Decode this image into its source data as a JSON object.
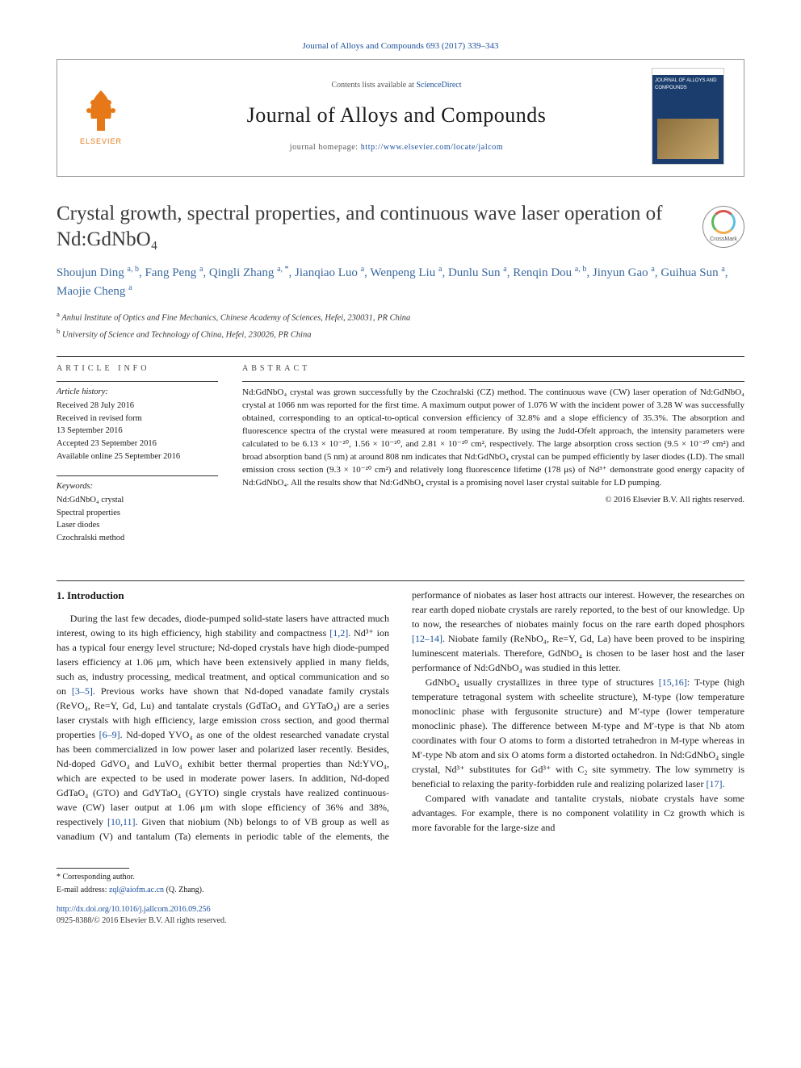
{
  "citation": "Journal of Alloys and Compounds 693 (2017) 339–343",
  "header": {
    "contents_prefix": "Contents lists available at ",
    "contents_link": "ScienceDirect",
    "journal_name": "Journal of Alloys and Compounds",
    "homepage_prefix": "journal homepage: ",
    "homepage_url": "http://www.elsevier.com/locate/jalcom",
    "publisher": "ELSEVIER",
    "cover_title": "JOURNAL OF ALLOYS AND COMPOUNDS"
  },
  "title": "Crystal growth, spectral properties, and continuous wave laser operation of Nd:GdNbO₄",
  "crossmark": "CrossMark",
  "authors_html": "Shoujun Ding <sup>a, b</sup>, Fang Peng <sup>a</sup>, Qingli Zhang <sup>a, *</sup>, Jianqiao Luo <sup>a</sup>, Wenpeng Liu <sup>a</sup>, Dunlu Sun <sup>a</sup>, Renqin Dou <sup>a, b</sup>, Jinyun Gao <sup>a</sup>, Guihua Sun <sup>a</sup>, Maojie Cheng <sup>a</sup>",
  "affiliations": [
    {
      "sup": "a",
      "text": "Anhui Institute of Optics and Fine Mechanics, Chinese Academy of Sciences, Hefei, 230031, PR China"
    },
    {
      "sup": "b",
      "text": "University of Science and Technology of China, Hefei, 230026, PR China"
    }
  ],
  "article_info": {
    "head": "ARTICLE INFO",
    "history_label": "Article history:",
    "history": [
      "Received 28 July 2016",
      "Received in revised form",
      "13 September 2016",
      "Accepted 23 September 2016",
      "Available online 25 September 2016"
    ],
    "keywords_label": "Keywords:",
    "keywords": [
      "Nd:GdNbO₄ crystal",
      "Spectral properties",
      "Laser diodes",
      "Czochralski method"
    ]
  },
  "abstract": {
    "head": "ABSTRACT",
    "text": "Nd:GdNbO₄ crystal was grown successfully by the Czochralski (CZ) method. The continuous wave (CW) laser operation of Nd:GdNbO₄ crystal at 1066 nm was reported for the first time. A maximum output power of 1.076 W with the incident power of 3.28 W was successfully obtained, corresponding to an optical-to-optical conversion efficiency of 32.8% and a slope efficiency of 35.3%. The absorption and fluorescence spectra of the crystal were measured at room temperature. By using the Judd-Ofelt approach, the intensity parameters were calculated to be 6.13 × 10⁻²⁰, 1.56 × 10⁻²⁰, and 2.81 × 10⁻²⁰ cm², respectively. The large absorption cross section (9.5 × 10⁻²⁰ cm²) and broad absorption band (5 nm) at around 808 nm indicates that Nd:GdNbO₄ crystal can be pumped efficiently by laser diodes (LD). The small emission cross section (9.3 × 10⁻²⁰ cm²) and relatively long fluorescence lifetime (178 μs) of Nd³⁺ demonstrate good energy capacity of Nd:GdNbO₄. All the results show that Nd:GdNbO₄ crystal is a promising novel laser crystal suitable for LD pumping.",
    "copyright": "© 2016 Elsevier B.V. All rights reserved."
  },
  "body": {
    "section1_title": "1. Introduction",
    "p1_a": "During the last few decades, diode-pumped solid-state lasers have attracted much interest, owing to its high efficiency, high stability and compactness ",
    "p1_ref1": "[1,2]",
    "p1_b": ". Nd³⁺ ion has a typical four energy level structure; Nd-doped crystals have high diode-pumped lasers efficiency at 1.06 μm, which have been extensively applied in many fields, such as, industry processing, medical treatment, and optical communication and so on ",
    "p1_ref2": "[3–5]",
    "p1_c": ". Previous works have shown that Nd-doped vanadate family crystals (ReVO₄, Re=Y, Gd, Lu) and tantalate crystals (GdTaO₄ and GYTaO₄) are a series laser crystals with high efficiency, large emission cross section, and good thermal properties ",
    "p1_ref3": "[6–9]",
    "p1_d": ". Nd-doped YVO₄ as one of the oldest researched vanadate crystal has been commercialized in low power laser and polarized laser recently. Besides, Nd-doped GdVO₄ and LuVO₄ exhibit better thermal properties than Nd:YVO₄, which are expected to be used in moderate power lasers. In addition, Nd-doped GdTaO₄ (GTO) and GdYTaO₄ (GYTO) single crystals have realized continuous-wave (CW) laser output at 1.06 μm with slope",
    "p2_a": "efficiency of 36% and 38%, respectively ",
    "p2_ref1": "[10,11]",
    "p2_b": ". Given that niobium (Nb) belongs to of VB group as well as vanadium (V) and tantalum (Ta) elements in periodic table of the elements, the performance of niobates as laser host attracts our interest. However, the researches on rear earth doped niobate crystals are rarely reported, to the best of our knowledge. Up to now, the researches of niobates mainly focus on the rare earth doped phosphors ",
    "p2_ref2": "[12–14]",
    "p2_c": ". Niobate family (ReNbO₄, Re=Y, Gd, La) have been proved to be inspiring luminescent materials. Therefore, GdNbO₄ is chosen to be laser host and the laser performance of Nd:GdNbO₄ was studied in this letter.",
    "p3_a": "GdNbO₄ usually crystallizes in three type of structures ",
    "p3_ref1": "[15,16]",
    "p3_b": ": T-type (high temperature tetragonal system with scheelite structure), M-type (low temperature monoclinic phase with fergusonite structure) and M′-type (lower temperature monoclinic phase). The difference between M-type and M′-type is that Nb atom coordinates with four O atoms to form a distorted tetrahedron in M-type whereas in M′-type Nb atom and six O atoms form a distorted octahedron. In Nd:GdNbO₄ single crystal, Nd³⁺ substitutes for Gd³⁺ with C₂ site symmetry. The low symmetry is beneficial to relaxing the parity-forbidden rule and realizing polarized laser ",
    "p3_ref2": "[17]",
    "p3_c": ".",
    "p4": "Compared with vanadate and tantalite crystals, niobate crystals have some advantages. For example, there is no component volatility in Cz growth which is more favorable for the large-size and"
  },
  "footer": {
    "corr": "* Corresponding author.",
    "email_label": "E-mail address: ",
    "email": "zql@aiofm.ac.cn",
    "email_suffix": " (Q. Zhang).",
    "doi": "http://dx.doi.org/10.1016/j.jallcom.2016.09.256",
    "issn": "0925-8388/© 2016 Elsevier B.V. All rights reserved."
  }
}
